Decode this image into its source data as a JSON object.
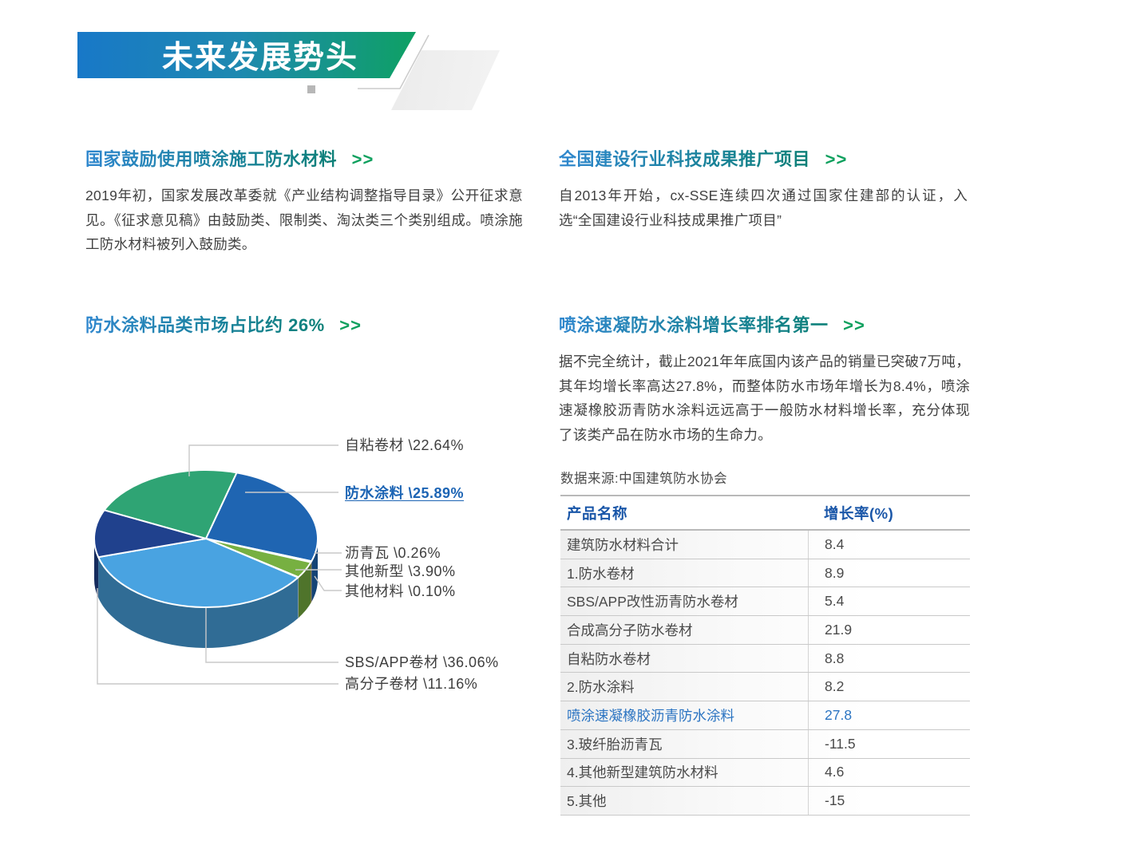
{
  "header": {
    "title": "未来发展势头"
  },
  "sections": {
    "policy": {
      "title": "国家鼓励使用喷涂施工防水材料",
      "arrow": ">>",
      "body": "2019年初，国家发展改革委就《产业结构调整指导目录》公开征求意见。《征求意见稿》由鼓励类、限制类、淘汰类三个类别组成。喷涂施工防水材料被列入鼓励类。"
    },
    "promotion": {
      "title": "全国建设行业科技成果推广项目",
      "arrow": ">>",
      "body": "自2013年开始，cx-SSE连续四次通过国家住建部的认证，入选“全国建设行业科技成果推广项目”"
    },
    "market_share": {
      "title": "防水涂料品类市场占比约 26%",
      "arrow": ">>"
    },
    "growth_rank": {
      "title": "喷涂速凝防水涂料增长率排名第一",
      "arrow": ">>",
      "body": "据不完全统计，截止2021年年底国内该产品的销量已突破7万吨，其年均增长率高达27.8%，而整体防水市场年增长为8.4%，喷涂速凝橡胶沥青防水涂料远远高于一般防水材料增长率，充分体现了该类产品在防水市场的生命力。",
      "source_note": "数据来源:中国建筑防水协会"
    }
  },
  "colors": {
    "banner_gradient_start": "#1878C8",
    "banner_gradient_end": "#0EA163",
    "title_gradient_start": "#2F87CE",
    "title_gradient_end": "#0C8077",
    "arrow_green": "#0FA05E",
    "highlight_blue": "#1C64B4",
    "table_header_blue": "#1956A8"
  },
  "chart_data": [
    {
      "type": "pie",
      "title": "防水涂料品类市场占比约 26%",
      "legend_position": "right",
      "slices": [
        {
          "label": "自粘卷材",
          "value": 22.64,
          "display": "22.64",
          "color": "#2FA474"
        },
        {
          "label": "防水涂料",
          "value": 25.89,
          "display": "25.89",
          "color": "#1F65B2",
          "highlight": true
        },
        {
          "label": "沥青瓦",
          "value": 0.26,
          "display": "0.26",
          "color": "#EE9D4D"
        },
        {
          "label": "其他新型",
          "value": 3.9,
          "display": "3.90",
          "color": "#77B041"
        },
        {
          "label": "其他材料",
          "value": 0.1,
          "display": "0.10",
          "color": "#C9CED3"
        },
        {
          "label": "SBS/APP卷材",
          "value": 36.06,
          "display": "36.06",
          "color": "#49A3E1"
        },
        {
          "label": "高分子卷材",
          "value": 11.16,
          "display": "11.16",
          "color": "#20418D"
        }
      ]
    },
    {
      "type": "table",
      "columns": [
        "产品名称",
        "增长率(%)"
      ],
      "rows": [
        [
          "建筑防水材料合计",
          "8.4"
        ],
        [
          "1.防水卷材",
          "8.9"
        ],
        [
          "SBS/APP改性沥青防水卷材",
          "5.4"
        ],
        [
          "合成高分子防水卷材",
          "21.9"
        ],
        [
          "自粘防水卷材",
          "8.8"
        ],
        [
          "2.防水涂料",
          "8.2"
        ],
        [
          "喷涂速凝橡胶沥青防水涂料",
          "27.8"
        ],
        [
          "3.玻纤胎沥青瓦",
          "-11.5"
        ],
        [
          "4.其他新型建筑防水材料",
          "4.6"
        ],
        [
          "5.其他",
          "-15"
        ]
      ],
      "highlight_row": 6
    }
  ]
}
